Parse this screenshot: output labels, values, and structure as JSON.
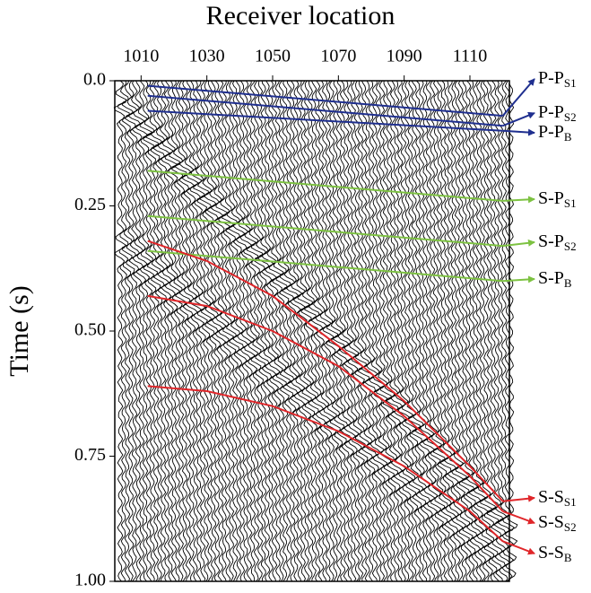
{
  "chart_data": {
    "type": "seismic",
    "x_label": "Receiver location",
    "y_label": "Time (s)",
    "xlim": [
      1002,
      1122
    ],
    "xticks": [
      1010,
      1030,
      1050,
      1070,
      1090,
      1110
    ],
    "ylim": [
      1,
      0
    ],
    "yticks": [
      {
        "value": 0,
        "label": "0.0"
      },
      0.25,
      {
        "value": 0.5,
        "label": "0.50"
      },
      0.75,
      {
        "value": 1,
        "label": "1.00"
      }
    ],
    "series": [
      {
        "name": {
          "main": "P-P",
          "sub": "S1"
        },
        "color": "#1f2f8f",
        "x": [
          1012,
          1120
        ],
        "values": [
          0.01,
          0.07
        ]
      },
      {
        "name": {
          "main": "P-P",
          "sub": "S2"
        },
        "color": "#1f2f8f",
        "x": [
          1012,
          1120
        ],
        "values": [
          0.03,
          0.09
        ]
      },
      {
        "name": {
          "main": "P-P",
          "sub": "B"
        },
        "color": "#1f2f8f",
        "x": [
          1012,
          1120
        ],
        "values": [
          0.06,
          0.1
        ]
      },
      {
        "name": {
          "main": "S-P",
          "sub": "S1"
        },
        "color": "#7dc242",
        "x": [
          1012,
          1120
        ],
        "values": [
          0.18,
          0.24
        ]
      },
      {
        "name": {
          "main": "S-P",
          "sub": "S2"
        },
        "color": "#7dc242",
        "x": [
          1012,
          1120
        ],
        "values": [
          0.27,
          0.33
        ]
      },
      {
        "name": {
          "main": "S-P",
          "sub": "B"
        },
        "color": "#7dc242",
        "x": [
          1012,
          1120
        ],
        "values": [
          0.34,
          0.4
        ]
      },
      {
        "name": {
          "main": "S-S",
          "sub": "S1"
        },
        "color": "#e0262a",
        "x": [
          1012,
          1030,
          1050,
          1070,
          1090,
          1110,
          1120
        ],
        "values": [
          0.32,
          0.36,
          0.43,
          0.53,
          0.64,
          0.77,
          0.84
        ]
      },
      {
        "name": {
          "main": "S-S",
          "sub": "S2"
        },
        "color": "#e0262a",
        "x": [
          1012,
          1030,
          1050,
          1070,
          1090,
          1110,
          1120
        ],
        "values": [
          0.43,
          0.45,
          0.5,
          0.57,
          0.67,
          0.79,
          0.86
        ]
      },
      {
        "name": {
          "main": "S-S",
          "sub": "B"
        },
        "color": "#e0262a",
        "x": [
          1012,
          1030,
          1050,
          1070,
          1090,
          1110,
          1120
        ],
        "values": [
          0.61,
          0.62,
          0.65,
          0.7,
          0.77,
          0.86,
          0.92
        ]
      }
    ]
  }
}
